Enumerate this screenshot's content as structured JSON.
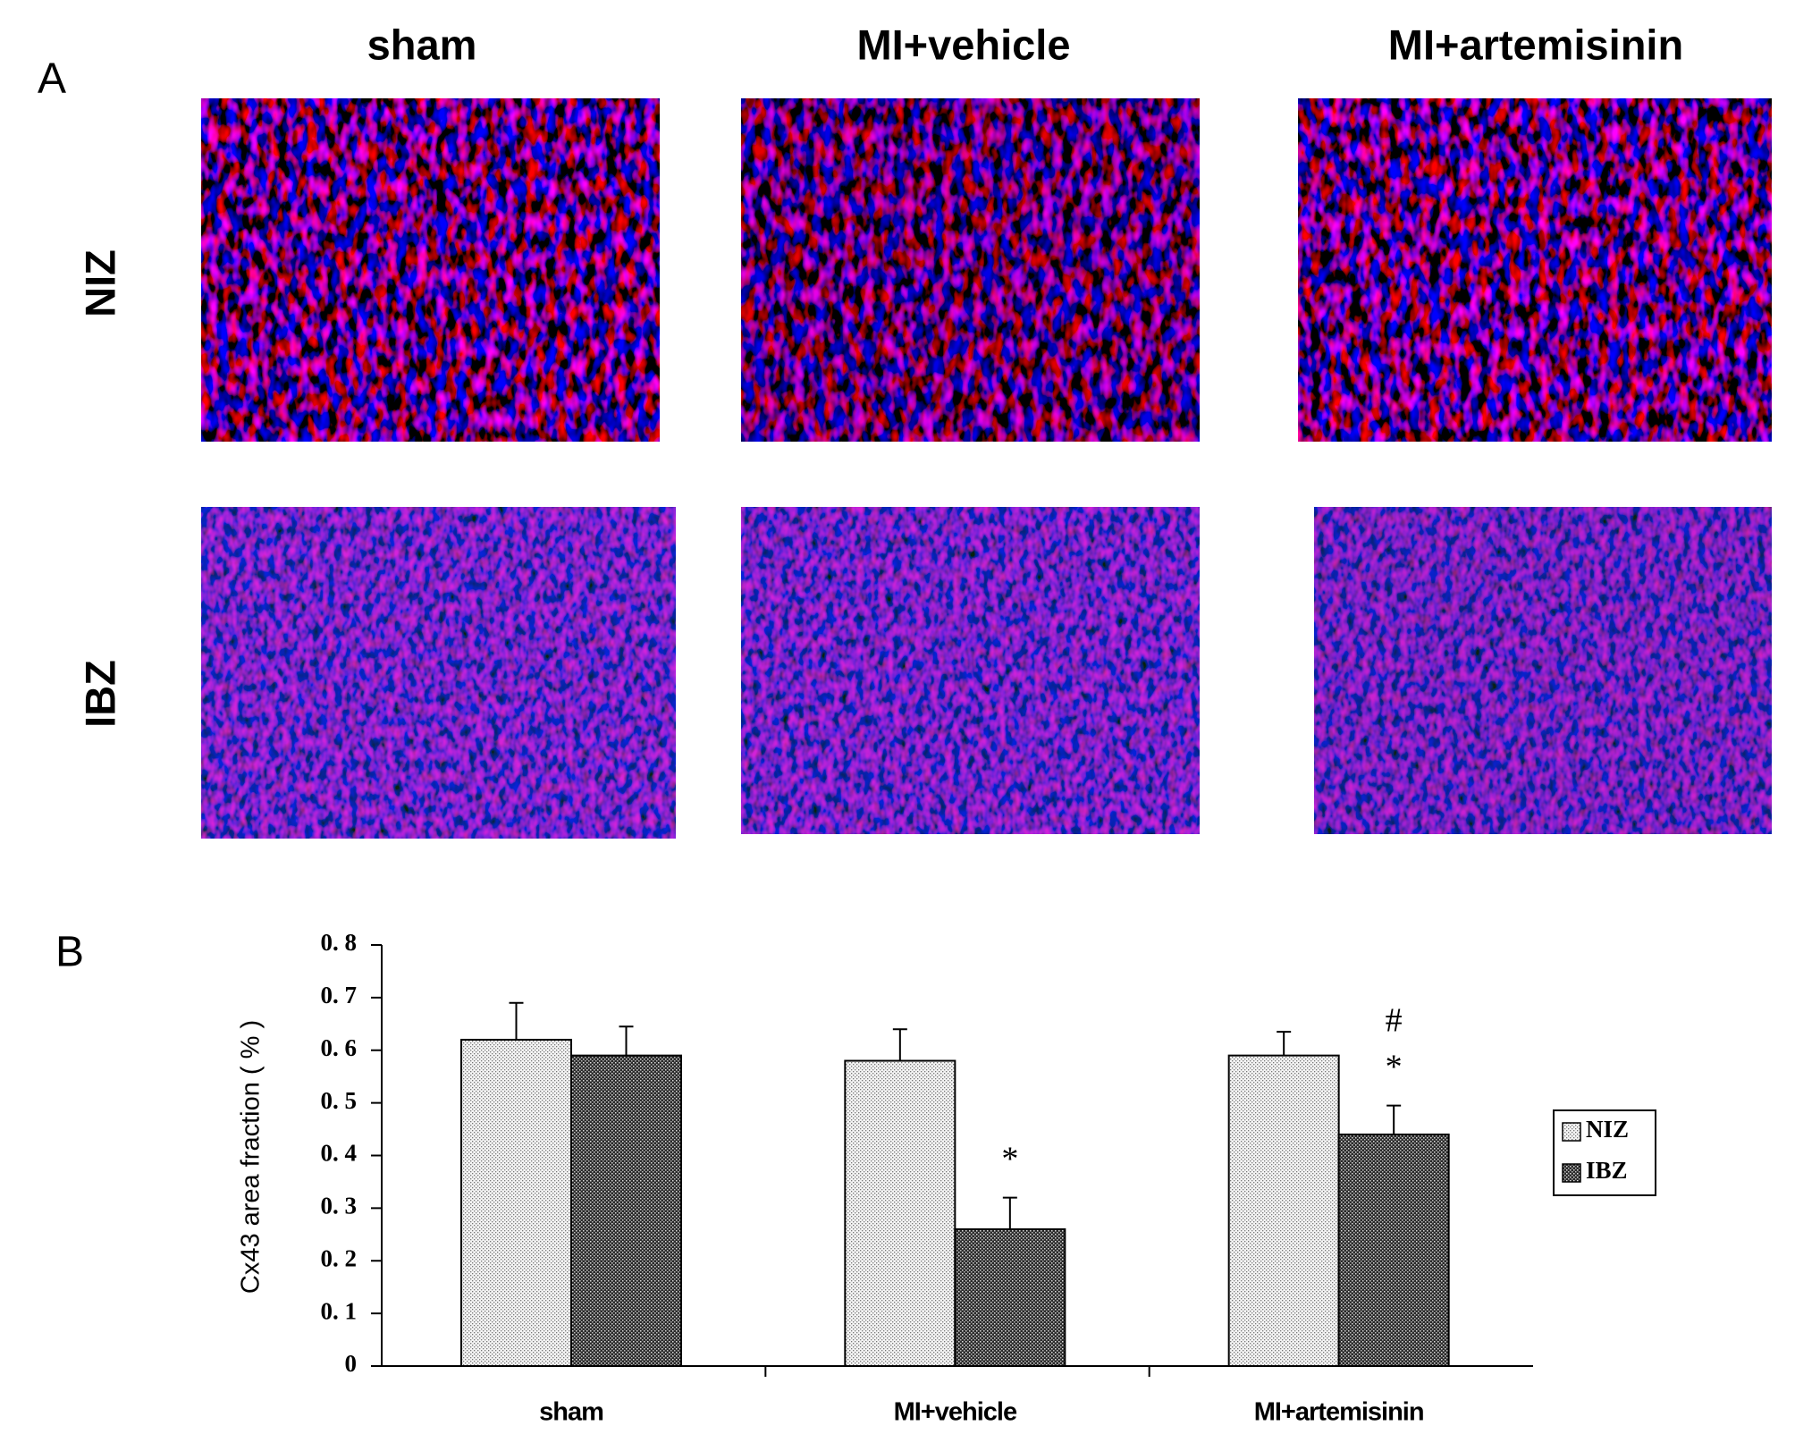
{
  "panel_a": {
    "label": "A",
    "columns": [
      "sham",
      "MI+vehicle",
      "MI+artemisinin"
    ],
    "rows": [
      "NIZ",
      "IBZ"
    ]
  },
  "panel_b": {
    "label": "B"
  },
  "chart_data": {
    "type": "bar",
    "ylabel": "Cx43 area fraction ( % )",
    "categories": [
      "sham",
      "MI+vehicle",
      "MI+artemisinin"
    ],
    "series": [
      {
        "name": "NIZ",
        "color": "#f4f4f4",
        "values": [
          0.62,
          0.58,
          0.59
        ],
        "errors": [
          0.07,
          0.06,
          0.045
        ]
      },
      {
        "name": "IBZ",
        "color": "#2a2a2a",
        "values": [
          0.59,
          0.26,
          0.44
        ],
        "errors": [
          0.055,
          0.06,
          0.055
        ]
      }
    ],
    "ylim": [
      0,
      0.8
    ],
    "yticks": [
      0,
      {
        "value": 0.1,
        "label": "0. 1"
      },
      {
        "value": 0.2,
        "label": "0. 2"
      },
      {
        "value": 0.3,
        "label": "0. 3"
      },
      {
        "value": 0.4,
        "label": "0. 4"
      },
      {
        "value": 0.5,
        "label": "0. 5"
      },
      {
        "value": 0.6,
        "label": "0. 6"
      },
      {
        "value": 0.7,
        "label": "0. 7"
      },
      {
        "value": 0.8,
        "label": "0. 8"
      }
    ],
    "annotations": [
      {
        "text": "*",
        "category": 1,
        "series": 1
      },
      {
        "text": "*",
        "category": 2,
        "series": 1
      },
      {
        "text": "#",
        "category": 2,
        "series": 1
      }
    ],
    "legend": "right"
  }
}
